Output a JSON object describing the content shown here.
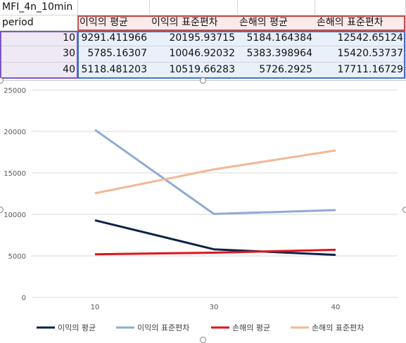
{
  "sheet": {
    "title_cell": "MFI_4n_10min",
    "period_header": "period",
    "headers": [
      "이익의 평균",
      "이익의 표준편차",
      "손해의 평균",
      "손해의 표준편차"
    ],
    "rows": [
      {
        "period": "10",
        "values": [
          "9291.411966",
          "20195.93715",
          "5184.164384",
          "12542.65124"
        ]
      },
      {
        "period": "30",
        "values": [
          "5785.16307",
          "10046.92032",
          "5383.398964",
          "15420.53737"
        ]
      },
      {
        "period": "40",
        "values": [
          "5118.481203",
          "10519.66283",
          "5726.2925",
          "17711.16729"
        ]
      }
    ]
  },
  "chart_data": {
    "type": "line",
    "x": [
      10,
      30,
      40
    ],
    "categories": [
      "10",
      "30",
      "40"
    ],
    "ylim": [
      0,
      25000
    ],
    "yticks": [
      0,
      5000,
      10000,
      15000,
      20000,
      25000
    ],
    "grid": true,
    "legend_position": "bottom",
    "series": [
      {
        "name": "이익의 평균",
        "values": [
          9291.411966,
          5785.16307,
          5118.481203
        ],
        "color": "#0e2245"
      },
      {
        "name": "이익의 표준편차",
        "values": [
          20195.93715,
          10046.92032,
          10519.66283
        ],
        "color": "#8fabd4"
      },
      {
        "name": "손해의 평균",
        "values": [
          5184.164384,
          5383.398964,
          5726.2925
        ],
        "color": "#e0141c"
      },
      {
        "name": "손해의 표준편차",
        "values": [
          12542.65124,
          15420.53737,
          17711.16729
        ],
        "color": "#f2b894"
      }
    ]
  }
}
